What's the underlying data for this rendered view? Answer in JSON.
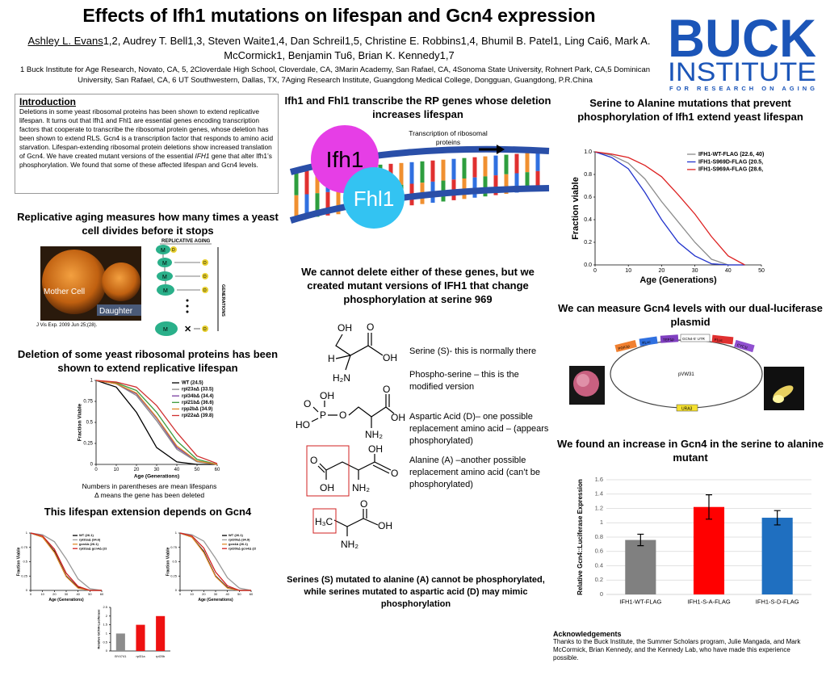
{
  "header": {
    "title": "Effects of Ifh1 mutations on lifespan and Gcn4 expression",
    "lead_author": "Ashley L. Evans",
    "authors": "1,2, Audrey T. Bell1,3, Steven Waite1,4, Dan Schreil1,5, Christine E. Robbins1,4, Bhumil B. Patel1,  Ling Cai6, Mark A. McCormick1, Benjamin Tu6, Brian K. Kennedy1,7",
    "affiliations": "1 Buck Institute for Age Research, Novato, CA, 5, 2Cloverdale High School, Cloverdale, CA, 3Marin Academy, San Rafael, CA, 4Sonoma State University, Rohnert Park, CA,5 Dominican University, San Rafael, CA, 6 UT Southwestern, Dallas, TX,  7Aging Research Institute, Guangdong Medical College, Dongguan, Guangdong, P.R.China"
  },
  "logo": {
    "line1": "BUCK",
    "line2": "INSTITUTE",
    "line3": "FOR RESEARCH ON AGING"
  },
  "intro": {
    "heading": "Introduction",
    "body_1": "Deletions in some yeast ribosomal proteins has been shown to extend replicative lifespan. It turns out that Ifh1 and Fhl1 are essential genes encoding transcription factors that cooperate to transcribe the ribosomal protein genes, whose deletion has been shown to extend RLS. Gcn4 is a transcription factor that responds to amino acid starvation. Lifespan-extending ribosomal protein deletions show increased translation of Gcn4. We have created mutant versions of the essential ",
    "body_italic": "IFH1",
    "body_2": " gene that alter Ifh1’s phosphorylation.  We found that some of these affected lifespan and Gcn4 levels."
  },
  "left": {
    "heading_1": "Replicative aging measures how many times a yeast cell divides before it stops",
    "mother": "Mother Cell",
    "daughter": "Daughter",
    "citation": "J Vis Exp. 2009 Jun 25;(28).",
    "schematic": {
      "title": "REPLICATIVE AGING",
      "side": "GENERATIONS",
      "mother": "M",
      "daughter": "D"
    },
    "heading_2": "Deletion of some yeast ribosomal proteins has been shown to extend replicative lifespan",
    "caption_1": "Numbers in parentheses are mean lifespans",
    "caption_2": "Δ means the gene has been deleted",
    "heading_3": "This lifespan extension depends on Gcn4"
  },
  "middle": {
    "heading_1": "Ifh1 and Fhl1 transcribe the RP genes whose deletion increases lifespan",
    "ifh1": "Ifh1",
    "fhl1": "Fhl1",
    "transcription": "Transcription of ribosomal proteins",
    "heading_2": "We cannot delete either of these genes, but we created mutant versions of IFH1 that change phosphorylation at serine 969",
    "serine": "Serine (S)- this is normally there",
    "phosphoserine": "Phospho-serine – this is the modified version",
    "aspartic": "Aspartic Acid (D)– one possible replacement amino acid – (appears phosphorylated)",
    "alanine": "Alanine (A) –another possible replacement amino acid (can’t be phosphorylated)",
    "caption": "Serines (S) mutated to alanine (A) cannot be phosphorylated, while serines mutated to aspartic acid (D) may mimic phosphorylation"
  },
  "chemistry": {
    "serine": [
      "OH",
      "O",
      "OH",
      "H",
      "H₂N"
    ],
    "phosphoserine": [
      "OH",
      "O",
      "P",
      "HO",
      "O",
      "O",
      "OH",
      "NH₂"
    ],
    "aspartic": [
      "O",
      "OH",
      "OH",
      "O",
      "NH₂"
    ],
    "alanine": [
      "H₃C",
      "O",
      "OH",
      "NH₂"
    ]
  },
  "right": {
    "heading_1": "Serine to Alanine mutations that prevent phosphorylation of Ifh1 extend yeast lifespan",
    "heading_2": "We can measure Gcn4 levels with our dual-luciferase plasmid",
    "plasmid": "pVW31",
    "marker": "URA3",
    "parts": [
      "PGK1p",
      "RLuc",
      "TEF1p",
      "GCN4-5' UTR",
      "FLuc",
      "CYC1t"
    ],
    "heading_3": "We found an increase in Gcn4 in the serine to alanine mutant",
    "ack_heading": "Acknowledgements",
    "ack_body": "Thanks to the Buck Institute,  the Summer Scholars program, Julie Mangada, and Mark McCormick, Brian Kennedy, and the Kennedy Lab, who have made this experience possible."
  },
  "chart_data": [
    {
      "type": "line",
      "xlabel": "Age (Generations)",
      "ylabel": "Fraction viable",
      "x": [
        0,
        5,
        10,
        15,
        20,
        25,
        30,
        35,
        40,
        45
      ],
      "xlim": [
        0,
        50
      ],
      "xticks": [
        0,
        10,
        20,
        30,
        40,
        50
      ],
      "ylim": [
        0,
        1
      ],
      "yticks": [
        {
          "value": 0,
          "label": "0.0"
        },
        0.2,
        0.4,
        0.6,
        0.8,
        {
          "value": 1,
          "label": "1.0"
        }
      ],
      "legend": "upper right",
      "series": [
        {
          "name": "IFH1-WT-FLAG (22.6, 40)",
          "color": "#8c8c8c",
          "values": [
            1,
            0.97,
            0.9,
            0.76,
            0.56,
            0.38,
            0.2,
            0.05,
            0,
            0
          ]
        },
        {
          "name": "IFH1-S969D-FLAG (20.5, 40)",
          "color": "#2233cc",
          "values": [
            1,
            0.95,
            0.85,
            0.64,
            0.4,
            0.2,
            0.08,
            0.01,
            0,
            0
          ]
        },
        {
          "name": "IFH1-S969A-FLAG (28.6, 40)",
          "color": "#dd2222",
          "values": [
            1,
            0.98,
            0.95,
            0.88,
            0.78,
            0.62,
            0.45,
            0.25,
            0.08,
            0
          ]
        }
      ]
    },
    {
      "type": "line",
      "xlabel": "Age (Generations)",
      "ylabel": "Fraction Viable",
      "x": [
        0,
        10,
        20,
        30,
        40,
        50,
        60
      ],
      "xlim": [
        0,
        60
      ],
      "xticks": [
        0,
        10,
        20,
        30,
        40,
        50,
        60
      ],
      "ylim": [
        0,
        1
      ],
      "yticks": [
        0,
        0.25,
        0.5,
        0.75,
        1
      ],
      "legend": "upper right",
      "series": [
        {
          "name": "WT (24.5)",
          "color": "#000000",
          "values": [
            1,
            0.92,
            0.62,
            0.2,
            0.03,
            0,
            0
          ]
        },
        {
          "name": "rpl23aΔ (33.5)",
          "color": "#888888",
          "values": [
            1,
            0.96,
            0.82,
            0.52,
            0.18,
            0.03,
            0
          ]
        },
        {
          "name": "rpl34bΔ (34.4)",
          "color": "#7a3fa0",
          "values": [
            1,
            0.96,
            0.84,
            0.55,
            0.2,
            0.04,
            0
          ]
        },
        {
          "name": "rpl21bΔ (36.6)",
          "color": "#3a9a3a",
          "values": [
            1,
            0.97,
            0.88,
            0.62,
            0.28,
            0.06,
            0
          ]
        },
        {
          "name": "rpp2bΔ (34.9)",
          "color": "#e08a2a",
          "values": [
            1,
            0.96,
            0.85,
            0.56,
            0.22,
            0.04,
            0
          ]
        },
        {
          "name": "rpl22aΔ (39.8)",
          "color": "#d03030",
          "values": [
            1,
            0.98,
            0.92,
            0.7,
            0.38,
            0.1,
            0.01
          ]
        }
      ]
    },
    {
      "type": "line",
      "xlabel": "Age (Generations)",
      "ylabel": "Fraction Viable",
      "x": [
        0,
        10,
        20,
        30,
        40,
        50,
        60
      ],
      "xlim": [
        0,
        60
      ],
      "xticks": [
        0,
        10,
        20,
        30,
        40,
        50,
        60
      ],
      "ylim": [
        0,
        1
      ],
      "yticks": [
        0,
        0.25,
        0.5,
        0.75,
        1
      ],
      "legend": "upper right",
      "series": [
        {
          "name": "WT (26.1)",
          "color": "#000000",
          "values": [
            1,
            0.93,
            0.68,
            0.25,
            0.05,
            0,
            0
          ]
        },
        {
          "name": "rpl31aΔ (34.6)",
          "color": "#999999",
          "values": [
            1,
            0.97,
            0.85,
            0.55,
            0.2,
            0.03,
            0
          ]
        },
        {
          "name": "gcn4Δ (26.1)",
          "color": "#e08a2a",
          "values": [
            1,
            0.93,
            0.66,
            0.24,
            0.04,
            0,
            0
          ]
        },
        {
          "name": "rpl31aΔ gcn4Δ (28.8)",
          "color": "#d02020",
          "values": [
            1,
            0.95,
            0.72,
            0.3,
            0.07,
            0,
            0
          ]
        }
      ]
    },
    {
      "type": "line",
      "xlabel": "Age (Generations)",
      "ylabel": "Fraction Viable",
      "x": [
        0,
        10,
        20,
        30,
        40,
        50,
        60
      ],
      "xlim": [
        0,
        60
      ],
      "xticks": [
        0,
        10,
        20,
        30,
        40,
        50,
        60
      ],
      "ylim": [
        0,
        1
      ],
      "yticks": [
        0,
        0.25,
        0.5,
        0.75,
        1
      ],
      "legend": "upper right",
      "series": [
        {
          "name": "WT (26.1)",
          "color": "#000000",
          "values": [
            1,
            0.93,
            0.68,
            0.25,
            0.05,
            0,
            0
          ]
        },
        {
          "name": "rpl20bΔ (34.9)",
          "color": "#999999",
          "values": [
            1,
            0.97,
            0.86,
            0.56,
            0.22,
            0.04,
            0
          ]
        },
        {
          "name": "gcn4Δ (26.1)",
          "color": "#e08a2a",
          "values": [
            1,
            0.93,
            0.66,
            0.24,
            0.04,
            0,
            0
          ]
        },
        {
          "name": "rpl20bΔ gcn4Δ (29.4)",
          "color": "#d02020",
          "values": [
            1,
            0.95,
            0.74,
            0.32,
            0.08,
            0,
            0
          ]
        }
      ]
    },
    {
      "type": "bar",
      "ylabel": "Relative GCN4-Luciferase",
      "categories": [
        "BY4741",
        "rpl31a",
        "rpl20b"
      ],
      "values": [
        1,
        1.5,
        2
      ],
      "colors": [
        "#8c8c8c",
        "#ee1111",
        "#ee1111"
      ],
      "ylim": [
        0,
        2.5
      ],
      "yticks": [
        0,
        0.5,
        1,
        1.5,
        2,
        2.5
      ],
      "grid": false
    },
    {
      "type": "bar",
      "ylabel": "Relative Gcn4::Luciferase Expression",
      "categories": [
        "IFH1-WT-FLAG",
        "IFH1-S-A-FLAG",
        "IFH1-S-D-FLAG"
      ],
      "values": [
        0.76,
        1.22,
        1.07
      ],
      "errors": [
        0.08,
        0.17,
        0.1
      ],
      "colors": [
        "#808080",
        "#ff0000",
        "#1f6fc0"
      ],
      "ylim": [
        0,
        1.6
      ],
      "yticks": [
        0,
        0.2,
        0.4,
        0.6,
        0.8,
        1,
        1.2,
        1.4,
        1.6
      ],
      "grid": true
    }
  ]
}
